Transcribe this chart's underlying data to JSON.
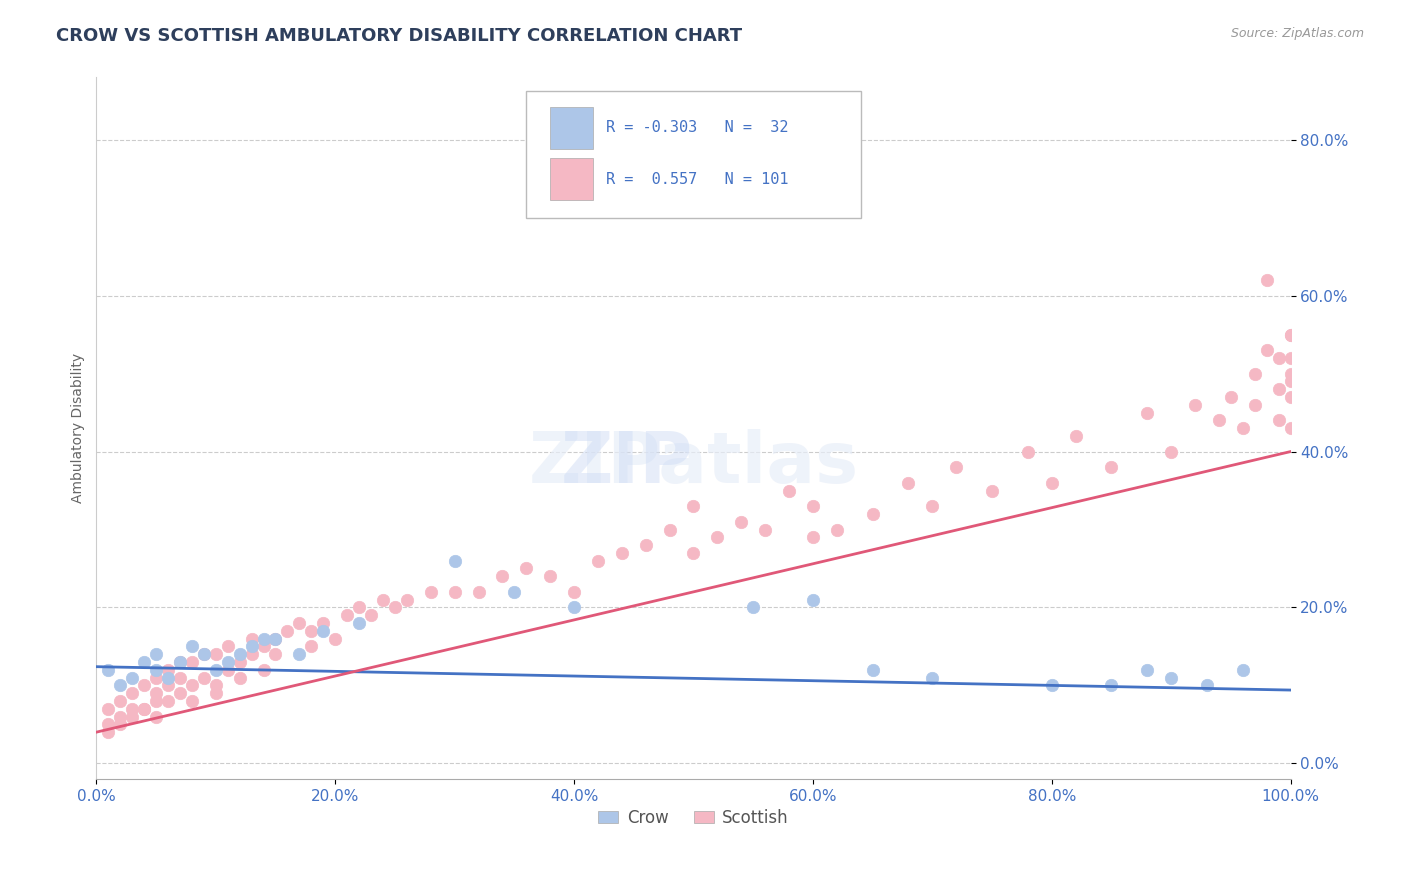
{
  "title": "CROW VS SCOTTISH AMBULATORY DISABILITY CORRELATION CHART",
  "source": "Source: ZipAtlas.com",
  "ylabel": "Ambulatory Disability",
  "legend_crow": "Crow",
  "legend_scottish": "Scottish",
  "crow_R": -0.303,
  "crow_N": 32,
  "scottish_R": 0.557,
  "scottish_N": 101,
  "xlim": [
    0.0,
    1.0
  ],
  "ylim": [
    -0.02,
    0.88
  ],
  "yticks": [
    0.0,
    0.2,
    0.4,
    0.6,
    0.8
  ],
  "xticks": [
    0.0,
    0.2,
    0.4,
    0.6,
    0.8,
    1.0
  ],
  "background_color": "#ffffff",
  "crow_color": "#adc6e8",
  "crow_line_color": "#4472c4",
  "scottish_color": "#f5b8c4",
  "scottish_line_color": "#e05878",
  "grid_color": "#cccccc",
  "title_color": "#2e3f5c",
  "axis_color": "#4472c4",
  "crow_scatter_x": [
    0.01,
    0.02,
    0.03,
    0.04,
    0.05,
    0.05,
    0.06,
    0.07,
    0.08,
    0.09,
    0.1,
    0.11,
    0.12,
    0.13,
    0.14,
    0.15,
    0.17,
    0.19,
    0.22,
    0.3,
    0.35,
    0.4,
    0.55,
    0.6,
    0.65,
    0.7,
    0.8,
    0.85,
    0.88,
    0.9,
    0.93,
    0.96
  ],
  "crow_scatter_y": [
    0.12,
    0.1,
    0.11,
    0.13,
    0.14,
    0.12,
    0.11,
    0.13,
    0.15,
    0.14,
    0.12,
    0.13,
    0.14,
    0.15,
    0.16,
    0.16,
    0.14,
    0.17,
    0.18,
    0.26,
    0.22,
    0.2,
    0.2,
    0.21,
    0.12,
    0.11,
    0.1,
    0.1,
    0.12,
    0.11,
    0.1,
    0.12
  ],
  "scottish_scatter_x": [
    0.01,
    0.01,
    0.01,
    0.02,
    0.02,
    0.02,
    0.03,
    0.03,
    0.03,
    0.04,
    0.04,
    0.04,
    0.05,
    0.05,
    0.05,
    0.05,
    0.06,
    0.06,
    0.06,
    0.07,
    0.07,
    0.07,
    0.08,
    0.08,
    0.08,
    0.09,
    0.09,
    0.1,
    0.1,
    0.1,
    0.11,
    0.11,
    0.12,
    0.12,
    0.13,
    0.13,
    0.14,
    0.14,
    0.15,
    0.15,
    0.16,
    0.17,
    0.18,
    0.18,
    0.19,
    0.2,
    0.21,
    0.22,
    0.23,
    0.24,
    0.25,
    0.26,
    0.28,
    0.3,
    0.32,
    0.34,
    0.36,
    0.38,
    0.4,
    0.42,
    0.44,
    0.46,
    0.48,
    0.5,
    0.5,
    0.52,
    0.54,
    0.56,
    0.58,
    0.6,
    0.6,
    0.62,
    0.65,
    0.68,
    0.7,
    0.72,
    0.75,
    0.78,
    0.8,
    0.82,
    0.85,
    0.88,
    0.9,
    0.92,
    0.94,
    0.95,
    0.96,
    0.97,
    0.97,
    0.98,
    0.99,
    0.99,
    0.99,
    1.0,
    1.0,
    1.0,
    1.0,
    1.0,
    1.0,
    1.0,
    0.98
  ],
  "scottish_scatter_y": [
    0.07,
    0.05,
    0.04,
    0.06,
    0.08,
    0.05,
    0.07,
    0.09,
    0.06,
    0.07,
    0.1,
    0.07,
    0.08,
    0.11,
    0.06,
    0.09,
    0.1,
    0.08,
    0.12,
    0.09,
    0.11,
    0.13,
    0.1,
    0.13,
    0.08,
    0.11,
    0.14,
    0.1,
    0.14,
    0.09,
    0.12,
    0.15,
    0.13,
    0.11,
    0.14,
    0.16,
    0.15,
    0.12,
    0.16,
    0.14,
    0.17,
    0.18,
    0.15,
    0.17,
    0.18,
    0.16,
    0.19,
    0.2,
    0.19,
    0.21,
    0.2,
    0.21,
    0.22,
    0.22,
    0.22,
    0.24,
    0.25,
    0.24,
    0.22,
    0.26,
    0.27,
    0.28,
    0.3,
    0.27,
    0.33,
    0.29,
    0.31,
    0.3,
    0.35,
    0.29,
    0.33,
    0.3,
    0.32,
    0.36,
    0.33,
    0.38,
    0.35,
    0.4,
    0.36,
    0.42,
    0.38,
    0.45,
    0.4,
    0.46,
    0.44,
    0.47,
    0.43,
    0.5,
    0.46,
    0.53,
    0.48,
    0.52,
    0.44,
    0.55,
    0.5,
    0.52,
    0.47,
    0.49,
    0.43,
    0.55,
    0.62
  ]
}
